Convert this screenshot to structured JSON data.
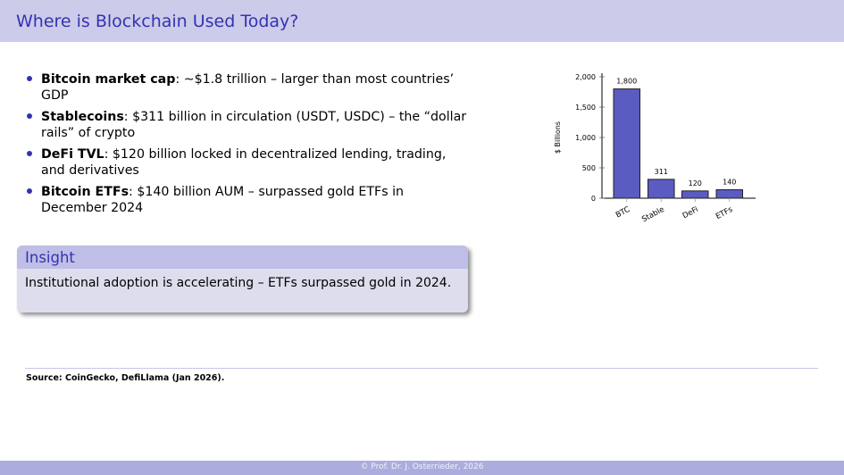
{
  "header": {
    "title": "Where is Blockchain Used Today?"
  },
  "bullets": [
    {
      "bold": "Bitcoin market cap",
      "text": ": ∼$1.8 trillion – larger than most countries’ GDP"
    },
    {
      "bold": "Stablecoins",
      "text": ": $311 billion in circulation (USDT, USDC) – the “dollar rails” of crypto"
    },
    {
      "bold": "DeFi TVL",
      "text": ": $120 billion locked in decentralized lending, trading, and derivatives"
    },
    {
      "bold": "Bitcoin ETFs",
      "text": ": $140 billion AUM – surpassed gold ETFs in December 2024"
    }
  ],
  "insight": {
    "title": "Insight",
    "body": "Institutional adoption is accelerating – ETFs surpassed gold in 2024."
  },
  "chart_data": {
    "type": "bar",
    "title": "",
    "xlabel": "",
    "ylabel": "$ Billions",
    "categories": [
      "BTC",
      "Stable",
      "DeFi",
      "ETFs"
    ],
    "values": [
      1800,
      311,
      120,
      140
    ],
    "value_labels": [
      "1,800",
      "311",
      "120",
      "140"
    ],
    "ylim": [
      0,
      2000
    ],
    "yticks": [
      0,
      500,
      1000,
      1500,
      2000
    ],
    "ytick_labels": [
      "0",
      "500",
      "1,000",
      "1,500",
      "2,000"
    ],
    "grid": false,
    "legend": "none",
    "bar_color": "#5b5bc1"
  },
  "source": "Source: CoinGecko, DefiLlama (Jan 2026).",
  "footer": {
    "text": "Prof. Dr. J. Osterrieder, 2026",
    "copyright_symbol": "©"
  }
}
